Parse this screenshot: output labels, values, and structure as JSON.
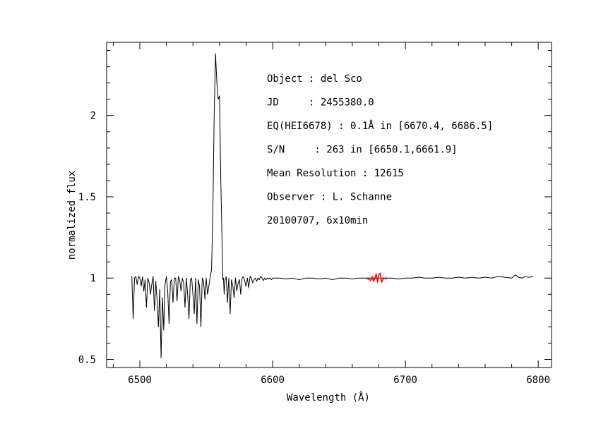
{
  "chart_data": {
    "type": "line",
    "xlabel": "Wavelength (Å)",
    "ylabel": "normalized flux",
    "xlim": [
      6475,
      6810
    ],
    "ylim": [
      0.45,
      2.45
    ],
    "x_ticks": [
      6500,
      6600,
      6700,
      6800
    ],
    "x_tick_labels": [
      "6500",
      "6600",
      "6700",
      "6800"
    ],
    "y_ticks": [
      0.5,
      1,
      1.5,
      2
    ],
    "y_tick_labels": [
      "0.5",
      "1",
      "1.5",
      "2"
    ],
    "grid": false,
    "annotations": [
      "Object : del Sco",
      "JD     : 2455380.0",
      "EQ(HEI6678) : 0.1Å in [6670.4, 6686.5]",
      "S/N     : 263 in [6650.1,6661.9]",
      "Mean Resolution : 12615",
      "Observer : L. Schanne",
      "20100707, 6x10min"
    ],
    "series": [
      {
        "color": "#000000",
        "x": [
          6494,
          6495,
          6496,
          6497,
          6498,
          6499,
          6500,
          6501,
          6502,
          6503,
          6504,
          6505,
          6506,
          6507,
          6508,
          6509,
          6510,
          6511,
          6512,
          6513,
          6514,
          6515,
          6516,
          6517,
          6518,
          6519,
          6520,
          6521,
          6522,
          6523,
          6524,
          6525,
          6526,
          6527,
          6528,
          6529,
          6530,
          6531,
          6532,
          6533,
          6534,
          6535,
          6536,
          6537,
          6538,
          6539,
          6540,
          6541,
          6542,
          6543,
          6544,
          6545,
          6546,
          6547,
          6548,
          6549,
          6550,
          6551,
          6552,
          6553,
          6554,
          6555,
          6556,
          6557,
          6558,
          6559,
          6560,
          6561,
          6562,
          6562.5,
          6563,
          6563.5,
          6564,
          6565,
          6566,
          6567,
          6568,
          6569,
          6570,
          6571,
          6572,
          6573,
          6574,
          6575,
          6576,
          6577,
          6578,
          6579,
          6580,
          6581,
          6582,
          6583,
          6584,
          6585,
          6586,
          6587,
          6588,
          6589,
          6590,
          6591,
          6592,
          6593,
          6594,
          6595,
          6596,
          6597,
          6598,
          6599,
          6600,
          6605,
          6610,
          6615,
          6620,
          6625,
          6630,
          6635,
          6640,
          6645,
          6650,
          6655,
          6660,
          6665,
          6670,
          6687,
          6690,
          6695,
          6700,
          6705,
          6710,
          6715,
          6720,
          6725,
          6730,
          6735,
          6740,
          6745,
          6750,
          6755,
          6760,
          6765,
          6770,
          6775,
          6780,
          6783,
          6785,
          6788,
          6790,
          6793,
          6796
        ],
        "y": [
          1.01,
          0.75,
          1.0,
          1.01,
          0.96,
          1.01,
          1.0,
          0.95,
          1.01,
          0.92,
          0.99,
          0.82,
          1.0,
          0.97,
          0.9,
          0.96,
          1.01,
          0.8,
          0.98,
          0.86,
          0.7,
          0.93,
          0.51,
          0.88,
          0.68,
          0.96,
          1.01,
          0.92,
          0.72,
          0.98,
          0.99,
          0.85,
          1.0,
          1.0,
          0.86,
          1.01,
          0.99,
          0.92,
          1.0,
          0.97,
          0.82,
          1.0,
          0.9,
          0.75,
          0.99,
          1.0,
          0.9,
          0.78,
          1.0,
          0.72,
          0.99,
          0.95,
          0.7,
          1.0,
          0.98,
          0.87,
          1.0,
          0.9,
          0.95,
          1.01,
          1.05,
          1.4,
          2.0,
          2.38,
          2.2,
          2.1,
          2.12,
          1.6,
          1.2,
          0.99,
          1.0,
          0.9,
          0.98,
          1.01,
          0.85,
          1.0,
          0.78,
          0.99,
          0.95,
          0.88,
          1.0,
          0.92,
          0.97,
          0.99,
          0.9,
          1.0,
          1.01,
          0.98,
          0.95,
          1.0,
          0.94,
          1.01,
          1.0,
          0.97,
          0.99,
          1.0,
          0.98,
          1.0,
          0.99,
          1.01,
          1.0,
          0.985,
          1.0,
          0.99,
          1.0,
          0.995,
          1.0,
          0.99,
          1.0,
          1.0,
          0.995,
          1.0,
          0.99,
          1.0,
          1.0,
          0.995,
          1.0,
          0.99,
          1.0,
          1.0,
          0.995,
          1.0,
          1.0,
          1.0,
          1.0,
          0.995,
          1.0,
          1.0,
          1.005,
          1.0,
          1.0,
          1.005,
          1.0,
          1.0,
          1.005,
          1.0,
          1.005,
          1.0,
          1.005,
          1.0,
          1.01,
          1.005,
          1.0,
          1.02,
          1.005,
          1.0,
          1.01,
          1.005,
          1.01
        ]
      },
      {
        "color": "#ff0000",
        "x": [
          6670.4,
          6672,
          6674,
          6675,
          6676,
          6677,
          6678,
          6679,
          6680,
          6681,
          6682,
          6683,
          6684,
          6685,
          6686.5
        ],
        "y": [
          1.0,
          0.995,
          0.985,
          1.01,
          0.98,
          1.0,
          1.025,
          0.975,
          1.02,
          1.03,
          0.975,
          0.99,
          1.0,
          0.995,
          1.0
        ]
      }
    ]
  }
}
